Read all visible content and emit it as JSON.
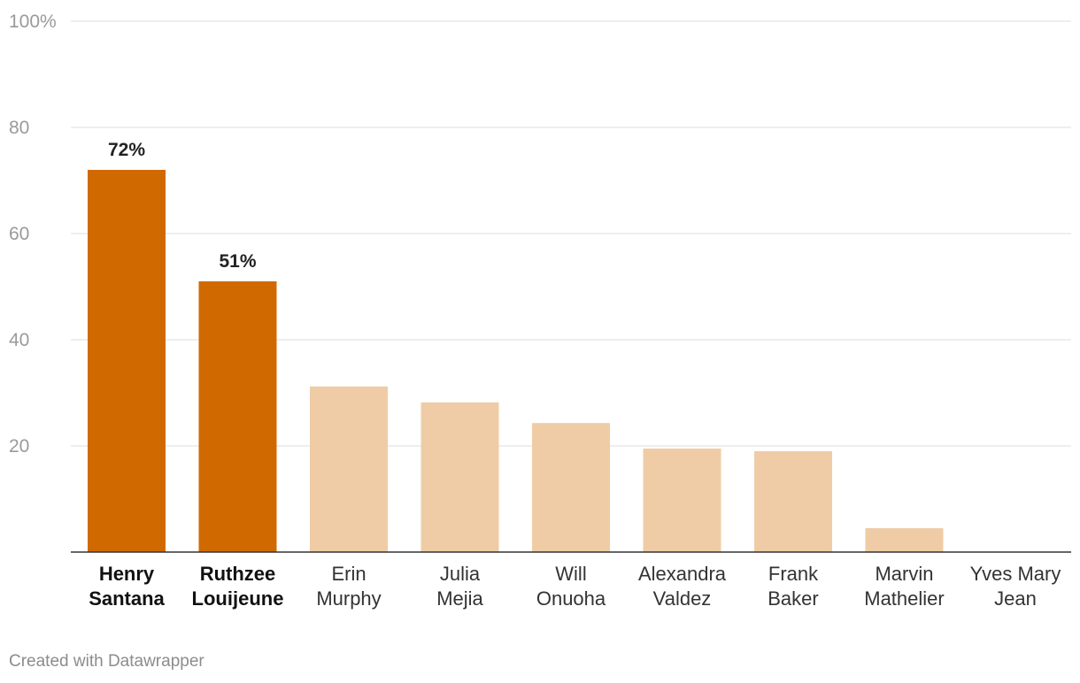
{
  "chart_data": {
    "type": "bar",
    "categories": [
      [
        "Henry",
        "Santana"
      ],
      [
        "Ruthzee",
        "Louijeune"
      ],
      [
        "Erin",
        "Murphy"
      ],
      [
        "Julia",
        "Mejia"
      ],
      [
        "Will",
        "Onuoha"
      ],
      [
        "Alexandra",
        "Valdez"
      ],
      [
        "Frank",
        "Baker"
      ],
      [
        "Marvin",
        "Mathelier"
      ],
      [
        "Yves Mary",
        "Jean"
      ]
    ],
    "values": [
      72,
      51,
      31.2,
      28.2,
      24.3,
      19.5,
      19,
      4.5,
      0
    ],
    "highlighted": [
      true,
      true,
      false,
      false,
      false,
      false,
      false,
      false,
      false
    ],
    "data_labels": [
      "72%",
      "51%",
      "",
      "",
      "",
      "",
      "",
      "",
      ""
    ],
    "y_ticks": [
      {
        "value": 20,
        "label": "20"
      },
      {
        "value": 40,
        "label": "40"
      },
      {
        "value": 60,
        "label": "60"
      },
      {
        "value": 80,
        "label": "80"
      },
      {
        "value": 100,
        "label": "100%"
      }
    ],
    "ylim": [
      0,
      100
    ],
    "grid": true,
    "title": "",
    "xlabel": "",
    "ylabel": "",
    "colors": {
      "highlight": "#d06a00",
      "muted": "#efcca6",
      "grid": "#dedede",
      "axis": "#333333"
    }
  },
  "footer": {
    "credit": "Created with Datawrapper"
  }
}
